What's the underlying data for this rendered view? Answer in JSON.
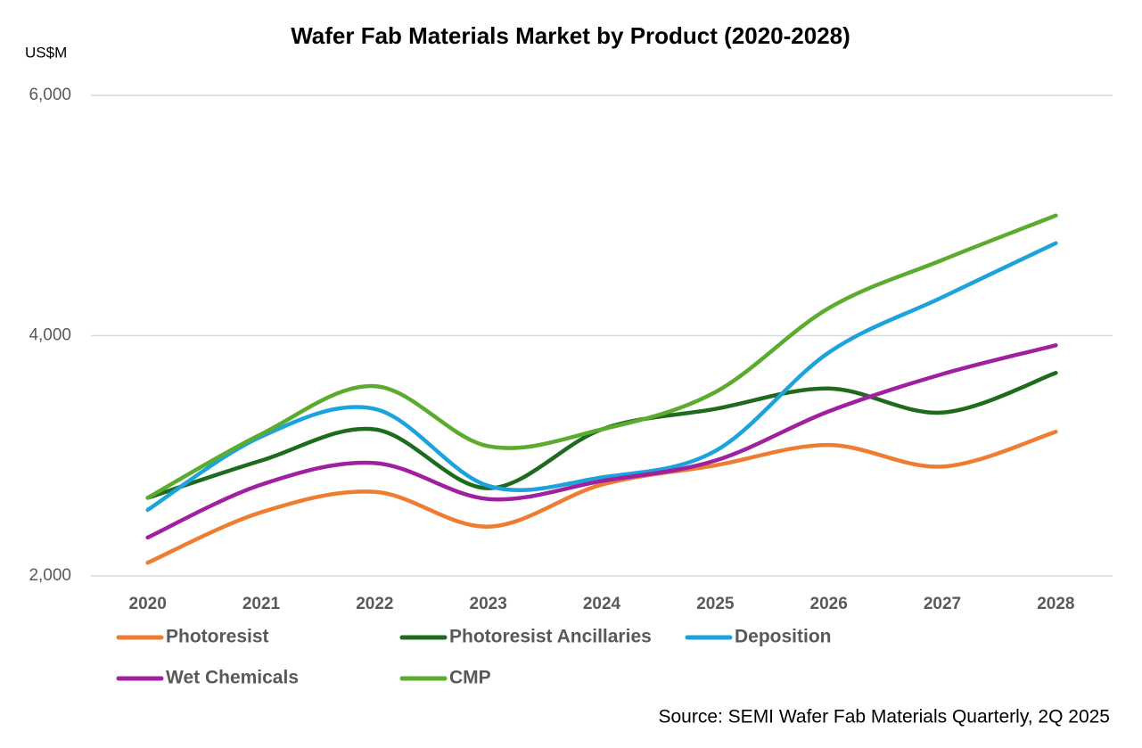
{
  "chart_data": {
    "type": "line",
    "title": "Wafer Fab Materials Market by Product (2020-2028)",
    "ylabel": "US$M",
    "source": "Source: SEMI Wafer Fab Materials Quarterly, 2Q 2025",
    "categories": [
      "2020",
      "2021",
      "2022",
      "2023",
      "2024",
      "2025",
      "2026",
      "2027",
      "2028"
    ],
    "series": [
      {
        "name": "Photoresist",
        "color": "#ed7d31",
        "values": [
          2110,
          2530,
          2700,
          2410,
          2760,
          2920,
          3090,
          2910,
          3200
        ]
      },
      {
        "name": "Photoresist Ancillaries",
        "color": "#1e6b1e",
        "values": [
          2650,
          2960,
          3220,
          2730,
          3220,
          3390,
          3560,
          3360,
          3690
        ]
      },
      {
        "name": "Deposition",
        "color": "#1ca3dc",
        "values": [
          2550,
          3160,
          3390,
          2750,
          2820,
          3040,
          3860,
          4320,
          4770
        ]
      },
      {
        "name": "Wet Chemicals",
        "color": "#a020a0",
        "values": [
          2320,
          2760,
          2940,
          2640,
          2790,
          2960,
          3370,
          3680,
          3920
        ]
      },
      {
        "name": "CMP",
        "color": "#5aab2e",
        "values": [
          2650,
          3180,
          3580,
          3080,
          3220,
          3530,
          4230,
          4630,
          5000
        ]
      }
    ],
    "ylim": [
      2000,
      6000
    ],
    "yticks": [
      {
        "value": 2000,
        "label": "2,000"
      },
      {
        "value": 4000,
        "label": "4,000"
      },
      {
        "value": 6000,
        "label": "6,000"
      }
    ],
    "grid": true,
    "smooth": true
  }
}
